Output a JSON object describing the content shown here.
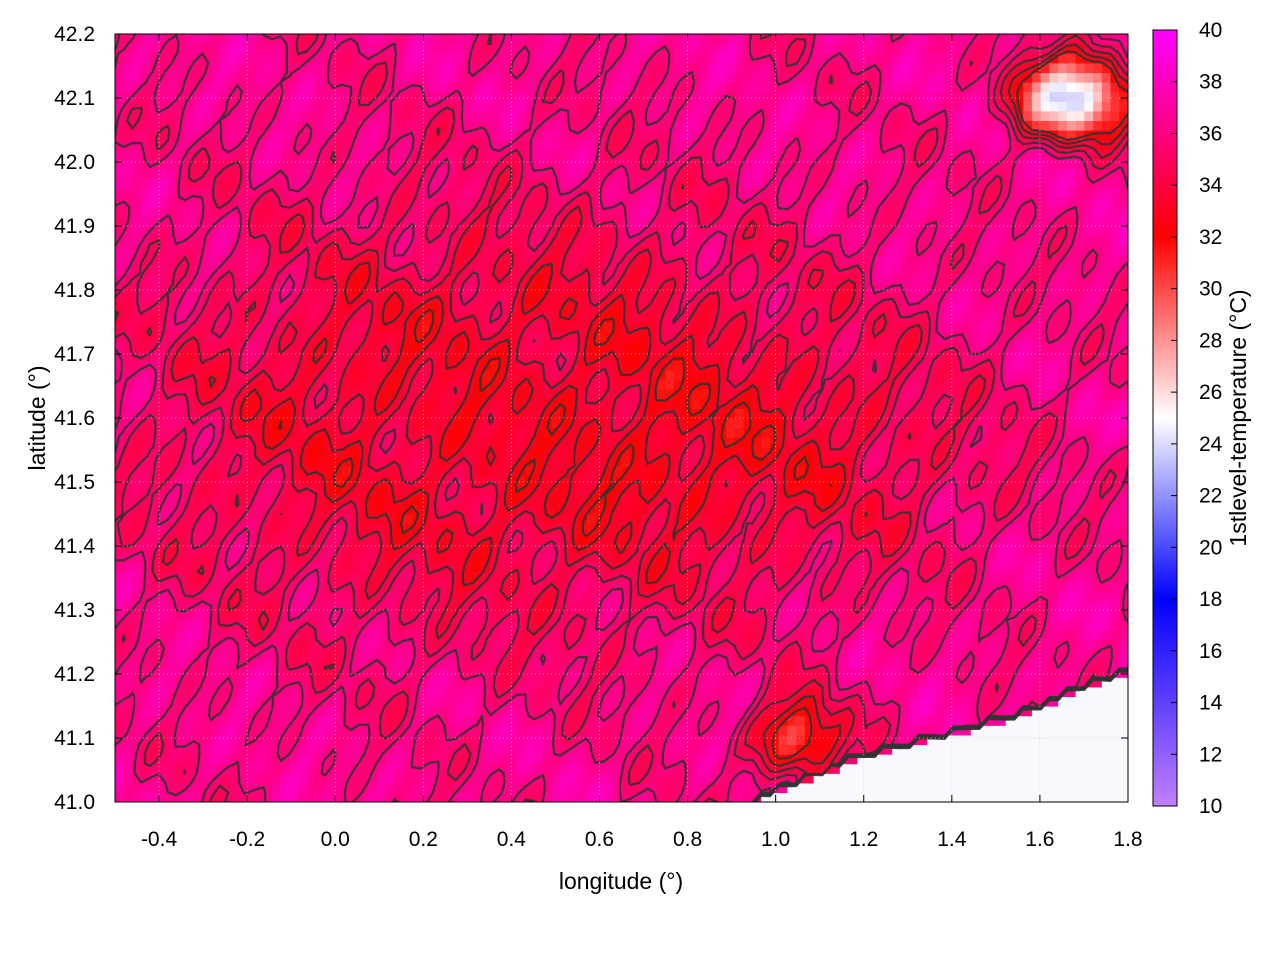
{
  "chart_data": {
    "type": "heatmap",
    "title": "",
    "xlabel": "longitude (°)",
    "ylabel": "latitude (°)",
    "colorbar_label": "1stlevel-temperature (°C)",
    "xlim": [
      -0.5,
      1.8
    ],
    "ylim": [
      41.0,
      42.2
    ],
    "x_ticks": [
      -0.4,
      -0.2,
      0.0,
      0.2,
      0.4,
      0.6,
      0.8,
      1.0,
      1.2,
      1.4,
      1.6,
      1.8
    ],
    "x_tick_labels": [
      "-0.4",
      "-0.2",
      "0.0",
      "0.2",
      "0.4",
      "0.6",
      "0.8",
      "1.0",
      "1.2",
      "1.4",
      "1.6",
      "1.8"
    ],
    "y_ticks": [
      41.0,
      41.1,
      41.2,
      41.3,
      41.4,
      41.5,
      41.6,
      41.7,
      41.8,
      41.9,
      42.0,
      42.1,
      42.2
    ],
    "y_tick_labels": [
      "41.0",
      "41.1",
      "41.2",
      "41.3",
      "41.4",
      "41.5",
      "41.6",
      "41.7",
      "41.8",
      "41.9",
      "42.0",
      "42.1",
      "42.2"
    ],
    "color_range": [
      10,
      40
    ],
    "colorbar_ticks": [
      10,
      12,
      14,
      16,
      18,
      20,
      22,
      24,
      26,
      28,
      30,
      32,
      34,
      36,
      38,
      40
    ],
    "colorbar_tick_labels": [
      "10",
      "12",
      "14",
      "16",
      "18",
      "20",
      "22",
      "24",
      "26",
      "28",
      "30",
      "32",
      "34",
      "36",
      "38",
      "40"
    ],
    "colormap": [
      {
        "value": 10,
        "color": "#c080ff"
      },
      {
        "value": 18,
        "color": "#0000ff"
      },
      {
        "value": 25,
        "color": "#ffffff"
      },
      {
        "value": 32,
        "color": "#ff0000"
      },
      {
        "value": 40,
        "color": "#ff00ff"
      }
    ],
    "field_regions": [
      {
        "name": "background",
        "temp": 36.5
      },
      {
        "name": "central-red-plateau",
        "temp": 33.5,
        "center": [
          0.35,
          41.6
        ],
        "radius": [
          0.75,
          0.32
        ]
      },
      {
        "name": "east-warm-band",
        "temp": 34.5,
        "center": [
          1.1,
          41.55
        ],
        "radius": [
          0.45,
          0.2
        ]
      },
      {
        "name": "sea-southeast",
        "temp": 24.8
      },
      {
        "name": "cool-patch-northeast",
        "temp": 23.5,
        "center": [
          1.67,
          42.1
        ],
        "radius": [
          0.12,
          0.06
        ]
      },
      {
        "name": "coastal-warm-strip",
        "temp": 28.5,
        "center": [
          1.05,
          41.1
        ],
        "radius": [
          0.1,
          0.06
        ]
      }
    ],
    "contour_levels": [
      32,
      33,
      34,
      35,
      36
    ],
    "grid": true,
    "legend": "colorbar-right"
  }
}
